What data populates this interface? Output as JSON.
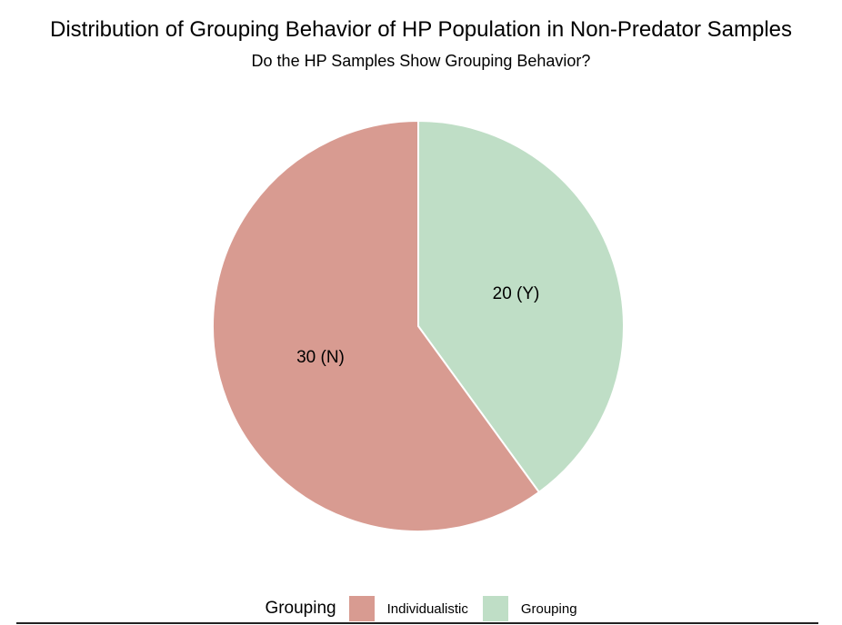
{
  "chart_data": {
    "type": "pie",
    "title": "Distribution of Grouping Behavior of HP Population in Non-Predator Samples",
    "subtitle": "Do the HP Samples Show Grouping Behavior?",
    "slices": [
      {
        "name": "Grouping",
        "value": 20,
        "label": "20 (Y)",
        "color": "#bfdec6"
      },
      {
        "name": "Individualistic",
        "value": 30,
        "label": "30 (N)",
        "color": "#d89b91"
      }
    ],
    "legend": {
      "title": "Grouping",
      "position": "bottom",
      "entries": [
        {
          "label": "Individualistic",
          "color": "#d89b91"
        },
        {
          "label": "Grouping",
          "color": "#bfdec6"
        }
      ]
    }
  }
}
